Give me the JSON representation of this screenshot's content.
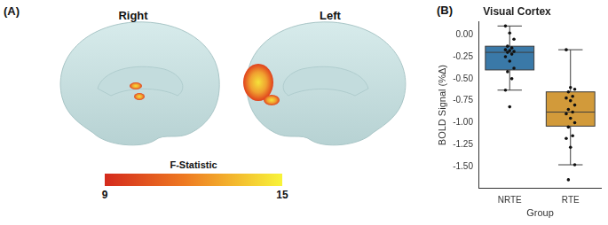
{
  "brain_panel": {
    "panel_label": "(A)",
    "hemisphere_labels": [
      "Right",
      "Left"
    ],
    "colorbar": {
      "title": "F-Statistic",
      "range": [
        9,
        15
      ],
      "ticks": [
        9,
        15
      ]
    }
  },
  "chart_data": {
    "type": "boxplot",
    "panel_label": "(B)",
    "title": "Visual Cortex",
    "x_label": "Group",
    "y_label": "BOLD Signal (%Δ)",
    "categories": [
      "NRTE",
      "RTE"
    ],
    "colors": [
      "#3a79a8",
      "#d29a3a"
    ],
    "boxes": [
      {
        "whisker_low": -0.63,
        "q1": -0.4,
        "median": -0.2,
        "q3": -0.13,
        "whisker_high": 0.1
      },
      {
        "whisker_low": -1.48,
        "q1": -1.04,
        "median": -0.88,
        "q3": -0.65,
        "whisker_high": -0.17
      }
    ],
    "points": [
      [
        0.1,
        0.02,
        -0.05,
        -0.13,
        -0.15,
        -0.17,
        -0.18,
        -0.19,
        -0.2,
        -0.22,
        -0.25,
        -0.3,
        -0.38,
        -0.42,
        -0.5,
        -0.63,
        -0.82
      ],
      [
        -0.17,
        -0.6,
        -0.62,
        -0.65,
        -0.7,
        -0.72,
        -0.75,
        -0.8,
        -0.85,
        -0.88,
        -0.9,
        -0.95,
        -1.0,
        -1.05,
        -1.15,
        -1.18,
        -1.28,
        -1.48,
        -1.65
      ]
    ],
    "ylim": [
      -1.75,
      0.15
    ],
    "yticks": [
      {
        "value": -1.5,
        "label": "-1.50"
      },
      -1.25,
      {
        "value": -1,
        "label": "-1.00"
      },
      -0.75,
      {
        "value": -0.5,
        "label": "-0.50"
      },
      -0.25,
      {
        "value": 0,
        "label": "0.00"
      }
    ],
    "grid": false
  }
}
